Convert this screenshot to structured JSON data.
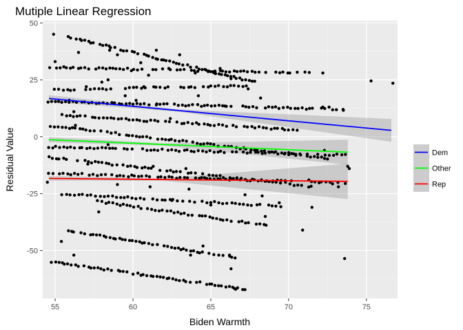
{
  "chart_data": {
    "type": "scatter",
    "title": "Mutiple Linear Regression",
    "xlabel": "Biden Warmth",
    "ylabel": "Residual Value",
    "xlim": [
      54.2,
      77.0
    ],
    "ylim": [
      -71.0,
      51.0
    ],
    "x_ticks": [
      55,
      60,
      65,
      70,
      75
    ],
    "y_ticks": [
      -50,
      -25,
      0,
      25,
      50
    ],
    "grid": true,
    "background": "#ebebeb",
    "legend": {
      "position": "right",
      "entries": [
        {
          "name": "Dem",
          "color": "#0000ff"
        },
        {
          "name": "Other",
          "color": "#00ff00"
        },
        {
          "name": "Rep",
          "color": "#ff0000"
        }
      ]
    },
    "point_color": "#000000",
    "band_color": "#999999",
    "bands": [
      {
        "name": "Dem",
        "x": [
          54.6,
          76.6
        ],
        "y": [
          16.8,
          2.8
        ],
        "ci_start": [
          1.5,
          1.0
        ],
        "ci_end": [
          0.8,
          5.0
        ]
      },
      {
        "name": "Other",
        "x": [
          54.6,
          73.8
        ],
        "y": [
          -1.3,
          -6.8
        ],
        "ci_start": [
          1.2,
          1.0
        ],
        "ci_end": [
          0.8,
          5.5
        ]
      },
      {
        "name": "Rep",
        "x": [
          54.6,
          73.8
        ],
        "y": [
          -18.3,
          -19.6
        ],
        "ci_start": [
          1.0,
          4.5
        ],
        "ci_end": [
          1.0,
          7.8
        ]
      }
    ],
    "scatter_rows": [
      {
        "x0": 54.6,
        "x1": 71.5,
        "y0": 30.5,
        "y1": 28.0,
        "n": 75
      },
      {
        "x0": 55.0,
        "x1": 67.3,
        "y0": 20.5,
        "y1": 22.5,
        "n": 50
      },
      {
        "x0": 55.8,
        "x1": 67.8,
        "y0": 44.0,
        "y1": 24.0,
        "n": 65
      },
      {
        "x0": 54.5,
        "x1": 73.5,
        "y0": 15.5,
        "y1": 12.0,
        "n": 80
      },
      {
        "x0": 55.2,
        "x1": 70.5,
        "y0": 9.5,
        "y1": 3.0,
        "n": 65
      },
      {
        "x0": 54.5,
        "x1": 73.7,
        "y0": 5.0,
        "y1": -10.5,
        "n": 85
      },
      {
        "x0": 54.6,
        "x1": 73.6,
        "y0": -4.5,
        "y1": -8.0,
        "n": 80
      },
      {
        "x0": 54.6,
        "x1": 71.5,
        "y0": -9.0,
        "y1": -22.0,
        "n": 75
      },
      {
        "x0": 54.6,
        "x1": 73.6,
        "y0": -16.0,
        "y1": -20.5,
        "n": 80
      },
      {
        "x0": 55.2,
        "x1": 69.5,
        "y0": -25.0,
        "y1": -30.5,
        "n": 55
      },
      {
        "x0": 57.3,
        "x1": 68.6,
        "y0": -28.0,
        "y1": -39.0,
        "n": 50
      },
      {
        "x0": 55.6,
        "x1": 66.8,
        "y0": -41.0,
        "y1": -53.5,
        "n": 55
      },
      {
        "x0": 54.8,
        "x1": 67.2,
        "y0": -55.0,
        "y1": -67.0,
        "n": 60
      }
    ],
    "scatter_extra": [
      [
        54.9,
        45.0
      ],
      [
        55.0,
        33.0
      ],
      [
        56.5,
        30.0
      ],
      [
        57.0,
        22.0
      ],
      [
        58.5,
        38.0
      ],
      [
        59.0,
        36.0
      ],
      [
        60.5,
        32.5
      ],
      [
        61.0,
        27.0
      ],
      [
        61.5,
        38.0
      ],
      [
        62.3,
        30.0
      ],
      [
        63.0,
        36.0
      ],
      [
        63.2,
        31.5
      ],
      [
        64.0,
        28.0
      ],
      [
        65.6,
        30.0
      ],
      [
        66.3,
        25.5
      ],
      [
        58.0,
        24.0
      ],
      [
        59.5,
        18.0
      ],
      [
        62.4,
        8.0
      ],
      [
        60.9,
        -6.0
      ],
      [
        58.4,
        -3.5
      ],
      [
        56.3,
        5.0
      ],
      [
        57.1,
        -12.0
      ],
      [
        55.9,
        16.0
      ],
      [
        56.2,
        11.0
      ],
      [
        60.2,
        16.0
      ],
      [
        61.5,
        14.0
      ],
      [
        61.3,
        -13.0
      ],
      [
        63.4,
        -14.0
      ],
      [
        64.6,
        -18.0
      ],
      [
        62.5,
        -28.0
      ],
      [
        65.0,
        -30.0
      ],
      [
        63.7,
        -52.0
      ],
      [
        64.5,
        -48.0
      ],
      [
        66.2,
        -52.0
      ],
      [
        66.3,
        -58.0
      ],
      [
        66.6,
        -67.0
      ],
      [
        57.8,
        -33.0
      ],
      [
        59.0,
        -21.0
      ],
      [
        61.1,
        -22.0
      ],
      [
        72.2,
        28.0
      ],
      [
        75.3,
        24.5
      ],
      [
        76.7,
        23.5
      ],
      [
        72.6,
        13.0
      ],
      [
        72.2,
        13.0
      ],
      [
        73.5,
        12.0
      ],
      [
        72.3,
        -6.0
      ],
      [
        73.8,
        -13.0
      ],
      [
        73.9,
        -14.0
      ],
      [
        73.2,
        -22.0
      ],
      [
        71.5,
        -31.0
      ],
      [
        70.9,
        -41.0
      ],
      [
        73.6,
        -53.5
      ],
      [
        69.8,
        -20.0
      ],
      [
        55.4,
        -46.0
      ],
      [
        56.2,
        -52.0
      ],
      [
        54.5,
        -20.0
      ],
      [
        63.6,
        -23.0
      ],
      [
        67.2,
        -25.5
      ],
      [
        68.5,
        -35.0
      ],
      [
        68.3,
        -26.0
      ],
      [
        69.4,
        -29.0
      ],
      [
        71.3,
        -19.0
      ],
      [
        64.2,
        18.0
      ],
      [
        67.4,
        21.0
      ],
      [
        68.2,
        17.0
      ],
      [
        65.9,
        13.5
      ],
      [
        58.4,
        25.0
      ],
      [
        60.7,
        22.0
      ],
      [
        56.5,
        37.0
      ],
      [
        59.9,
        29.0
      ]
    ]
  }
}
